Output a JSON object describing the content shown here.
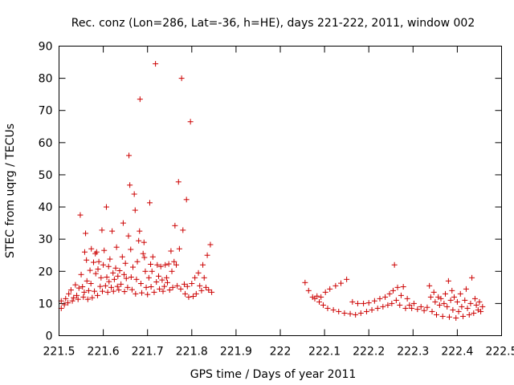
{
  "chart_data": {
    "type": "scatter",
    "title": "Rec. conz (Lon=286, Lat=-36, h=HE), days 221-222, 2011, window 002",
    "xlabel": "GPS time / Days of year 2011",
    "ylabel": "STEC from uqrg / TECUs",
    "xlim": [
      221.5,
      222.5
    ],
    "ylim": [
      0,
      90
    ],
    "xticks": [
      "221.5",
      "221.6",
      "221.7",
      "221.8",
      "221.9",
      "222",
      "222.1",
      "222.2",
      "222.3",
      "222.4",
      "222.5"
    ],
    "yticks": [
      "0",
      "10",
      "20",
      "30",
      "40",
      "50",
      "60",
      "70",
      "80",
      "90"
    ],
    "grid": false,
    "marker": "+",
    "color": "#cc0000",
    "series": [
      {
        "name": "STEC",
        "points": [
          [
            221.505,
            8.5
          ],
          [
            221.505,
            10.8
          ],
          [
            221.512,
            9.6
          ],
          [
            221.515,
            11.5
          ],
          [
            221.52,
            10.2
          ],
          [
            221.522,
            13.0
          ],
          [
            221.527,
            14.2
          ],
          [
            221.53,
            10.8
          ],
          [
            221.533,
            11.8
          ],
          [
            221.537,
            15.8
          ],
          [
            221.54,
            12.5
          ],
          [
            221.543,
            11.3
          ],
          [
            221.545,
            14.8
          ],
          [
            221.548,
            37.5
          ],
          [
            221.55,
            19.0
          ],
          [
            221.553,
            15.2
          ],
          [
            221.555,
            12.0
          ],
          [
            221.557,
            13.5
          ],
          [
            221.558,
            26.0
          ],
          [
            221.56,
            31.8
          ],
          [
            221.562,
            23.5
          ],
          [
            221.563,
            17.0
          ],
          [
            221.565,
            11.3
          ],
          [
            221.567,
            14.0
          ],
          [
            221.57,
            20.3
          ],
          [
            221.572,
            16.2
          ],
          [
            221.573,
            27.0
          ],
          [
            221.575,
            11.8
          ],
          [
            221.578,
            22.8
          ],
          [
            221.58,
            13.8
          ],
          [
            221.582,
            25.5
          ],
          [
            221.583,
            19.3
          ],
          [
            221.585,
            26.0
          ],
          [
            221.587,
            12.5
          ],
          [
            221.588,
            20.7
          ],
          [
            221.59,
            23.0
          ],
          [
            221.593,
            15.3
          ],
          [
            221.595,
            18.0
          ],
          [
            221.597,
            32.8
          ],
          [
            221.598,
            13.8
          ],
          [
            221.6,
            22.0
          ],
          [
            221.602,
            26.5
          ],
          [
            221.605,
            15.5
          ],
          [
            221.607,
            40.0
          ],
          [
            221.608,
            18.2
          ],
          [
            221.61,
            13.5
          ],
          [
            221.612,
            21.5
          ],
          [
            221.613,
            16.8
          ],
          [
            221.615,
            23.8
          ],
          [
            221.618,
            15.0
          ],
          [
            221.62,
            32.5
          ],
          [
            221.622,
            19.5
          ],
          [
            221.623,
            13.8
          ],
          [
            221.625,
            17.5
          ],
          [
            221.628,
            21.0
          ],
          [
            221.63,
            27.5
          ],
          [
            221.632,
            15.3
          ],
          [
            221.633,
            18.5
          ],
          [
            221.635,
            14.2
          ],
          [
            221.637,
            20.2
          ],
          [
            221.64,
            16.0
          ],
          [
            221.643,
            24.5
          ],
          [
            221.645,
            35.0
          ],
          [
            221.647,
            19.0
          ],
          [
            221.648,
            13.7
          ],
          [
            221.65,
            22.5
          ],
          [
            221.652,
            17.8
          ],
          [
            221.655,
            15.0
          ],
          [
            221.657,
            31.0
          ],
          [
            221.658,
            56.0
          ],
          [
            221.66,
            46.8
          ],
          [
            221.662,
            26.8
          ],
          [
            221.663,
            18.2
          ],
          [
            221.665,
            14.3
          ],
          [
            221.667,
            21.3
          ],
          [
            221.67,
            44.0
          ],
          [
            221.672,
            39.0
          ],
          [
            221.673,
            13.0
          ],
          [
            221.675,
            17.5
          ],
          [
            221.677,
            23.0
          ],
          [
            221.68,
            29.5
          ],
          [
            221.682,
            32.5
          ],
          [
            221.683,
            73.5
          ],
          [
            221.685,
            16.2
          ],
          [
            221.687,
            13.3
          ],
          [
            221.69,
            25.5
          ],
          [
            221.692,
            29.0
          ],
          [
            221.693,
            24.3
          ],
          [
            221.695,
            20.0
          ],
          [
            221.697,
            15.0
          ],
          [
            221.7,
            12.8
          ],
          [
            221.703,
            18.0
          ],
          [
            221.705,
            41.3
          ],
          [
            221.707,
            22.2
          ],
          [
            221.708,
            15.2
          ],
          [
            221.71,
            20.0
          ],
          [
            221.712,
            24.5
          ],
          [
            221.715,
            13.5
          ],
          [
            221.718,
            84.5
          ],
          [
            221.72,
            16.7
          ],
          [
            221.722,
            22.0
          ],
          [
            221.725,
            18.5
          ],
          [
            221.727,
            14.5
          ],
          [
            221.73,
            21.5
          ],
          [
            221.733,
            17.3
          ],
          [
            221.735,
            13.8
          ],
          [
            221.738,
            15.3
          ],
          [
            221.74,
            22.0
          ],
          [
            221.743,
            18.0
          ],
          [
            221.745,
            16.5
          ],
          [
            221.748,
            22.3
          ],
          [
            221.75,
            14.2
          ],
          [
            221.753,
            26.3
          ],
          [
            221.755,
            20.0
          ],
          [
            221.757,
            15.0
          ],
          [
            221.76,
            23.0
          ],
          [
            221.762,
            34.2
          ],
          [
            221.765,
            22.0
          ],
          [
            221.767,
            15.5
          ],
          [
            221.77,
            47.8
          ],
          [
            221.772,
            27.0
          ],
          [
            221.775,
            14.5
          ],
          [
            221.777,
            80.0
          ],
          [
            221.78,
            32.8
          ],
          [
            221.783,
            16.0
          ],
          [
            221.785,
            13.0
          ],
          [
            221.788,
            42.3
          ],
          [
            221.79,
            15.3
          ],
          [
            221.793,
            12.0
          ],
          [
            221.797,
            66.5
          ],
          [
            221.8,
            16.2
          ],
          [
            221.803,
            12.2
          ],
          [
            221.807,
            18.0
          ],
          [
            221.81,
            13.0
          ],
          [
            221.815,
            19.5
          ],
          [
            221.818,
            15.5
          ],
          [
            221.822,
            14.0
          ],
          [
            221.825,
            22.0
          ],
          [
            221.828,
            18.0
          ],
          [
            221.832,
            15.0
          ],
          [
            221.835,
            25.0
          ],
          [
            221.838,
            14.2
          ],
          [
            221.842,
            28.3
          ],
          [
            221.845,
            13.5
          ],
          [
            222.056,
            16.5
          ],
          [
            222.064,
            14.0
          ],
          [
            222.073,
            12.0
          ],
          [
            222.078,
            11.5
          ],
          [
            222.083,
            12.3
          ],
          [
            222.088,
            10.5
          ],
          [
            222.092,
            12.0
          ],
          [
            222.097,
            9.5
          ],
          [
            222.102,
            13.5
          ],
          [
            222.107,
            8.5
          ],
          [
            222.112,
            14.5
          ],
          [
            222.12,
            8.0
          ],
          [
            222.125,
            15.5
          ],
          [
            222.132,
            7.5
          ],
          [
            222.137,
            16.3
          ],
          [
            222.145,
            7.0
          ],
          [
            222.15,
            17.5
          ],
          [
            222.158,
            6.8
          ],
          [
            222.163,
            10.5
          ],
          [
            222.17,
            6.5
          ],
          [
            222.175,
            10.0
          ],
          [
            222.182,
            7.0
          ],
          [
            222.188,
            10.0
          ],
          [
            222.195,
            7.5
          ],
          [
            222.2,
            10.2
          ],
          [
            222.207,
            8.0
          ],
          [
            222.213,
            10.8
          ],
          [
            222.22,
            8.5
          ],
          [
            222.225,
            11.5
          ],
          [
            222.232,
            9.0
          ],
          [
            222.237,
            12.0
          ],
          [
            222.243,
            9.5
          ],
          [
            222.247,
            13.0
          ],
          [
            222.252,
            10.0
          ],
          [
            222.255,
            14.0
          ],
          [
            222.258,
            22.0
          ],
          [
            222.262,
            11.0
          ],
          [
            222.265,
            15.0
          ],
          [
            222.27,
            9.5
          ],
          [
            222.273,
            12.5
          ],
          [
            222.278,
            15.2
          ],
          [
            222.283,
            8.5
          ],
          [
            222.287,
            11.5
          ],
          [
            222.292,
            9.5
          ],
          [
            222.297,
            8.5
          ],
          [
            222.302,
            10.0
          ],
          [
            222.31,
            8.2
          ],
          [
            222.318,
            9.0
          ],
          [
            222.325,
            7.8
          ],
          [
            222.332,
            8.8
          ],
          [
            222.337,
            15.5
          ],
          [
            222.34,
            12.0
          ],
          [
            222.343,
            7.5
          ],
          [
            222.347,
            13.5
          ],
          [
            222.35,
            10.5
          ],
          [
            222.353,
            6.5
          ],
          [
            222.357,
            12.0
          ],
          [
            222.36,
            9.5
          ],
          [
            222.363,
            11.5
          ],
          [
            222.367,
            6.0
          ],
          [
            222.37,
            10.0
          ],
          [
            222.373,
            13.0
          ],
          [
            222.377,
            9.0
          ],
          [
            222.38,
            17.0
          ],
          [
            222.382,
            5.8
          ],
          [
            222.385,
            11.0
          ],
          [
            222.388,
            14.0
          ],
          [
            222.39,
            8.0
          ],
          [
            222.393,
            12.0
          ],
          [
            222.397,
            5.5
          ],
          [
            222.4,
            10.5
          ],
          [
            222.403,
            7.5
          ],
          [
            222.407,
            13.0
          ],
          [
            222.41,
            9.0
          ],
          [
            222.413,
            6.0
          ],
          [
            222.417,
            11.0
          ],
          [
            222.42,
            14.5
          ],
          [
            222.423,
            8.5
          ],
          [
            222.427,
            6.5
          ],
          [
            222.43,
            10.0
          ],
          [
            222.433,
            18.0
          ],
          [
            222.437,
            7.0
          ],
          [
            222.44,
            11.5
          ],
          [
            222.443,
            9.5
          ],
          [
            222.447,
            8.0
          ],
          [
            222.45,
            10.5
          ],
          [
            222.453,
            7.5
          ],
          [
            222.457,
            9.0
          ]
        ]
      }
    ]
  }
}
